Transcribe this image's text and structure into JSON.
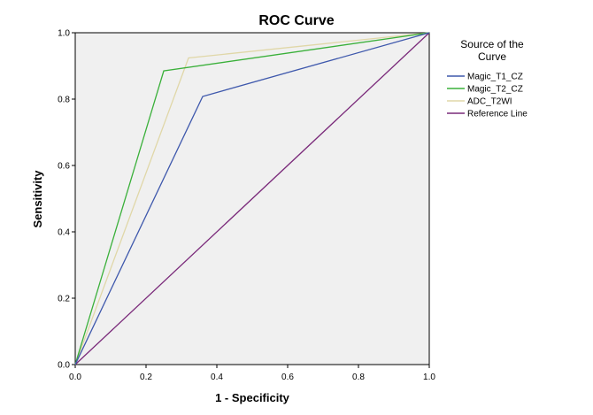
{
  "chart_data": {
    "type": "line",
    "title": "ROC Curve",
    "xlabel": "1 - Specificity",
    "ylabel": "Sensitivity",
    "xlim": [
      0,
      1
    ],
    "ylim": [
      0,
      1
    ],
    "x_ticks": [
      "0.0",
      "0.2",
      "0.4",
      "0.6",
      "0.8",
      "1.0"
    ],
    "y_ticks": [
      "0.0",
      "0.2",
      "0.4",
      "0.6",
      "0.8",
      "1.0"
    ],
    "legend_title_lines": [
      "Source of the",
      "Curve"
    ],
    "legend_position": "right",
    "plot_background": "#f0f0f0",
    "series": [
      {
        "name": "Magic_T1_CZ",
        "color": "#3e58ac",
        "points": [
          [
            0,
            0
          ],
          [
            0.36,
            0.808
          ],
          [
            1,
            1
          ]
        ]
      },
      {
        "name": "Magic_T2_CZ",
        "color": "#3ab03a",
        "points": [
          [
            0,
            0
          ],
          [
            0.25,
            0.885
          ],
          [
            1,
            1
          ]
        ]
      },
      {
        "name": "ADC_T2WI",
        "color": "#e0d7a8",
        "points": [
          [
            0,
            0
          ],
          [
            0.32,
            0.924
          ],
          [
            1,
            1
          ]
        ]
      },
      {
        "name": "Reference Line",
        "color": "#7a2a7a",
        "points": [
          [
            0,
            0
          ],
          [
            1,
            1
          ]
        ]
      }
    ]
  }
}
